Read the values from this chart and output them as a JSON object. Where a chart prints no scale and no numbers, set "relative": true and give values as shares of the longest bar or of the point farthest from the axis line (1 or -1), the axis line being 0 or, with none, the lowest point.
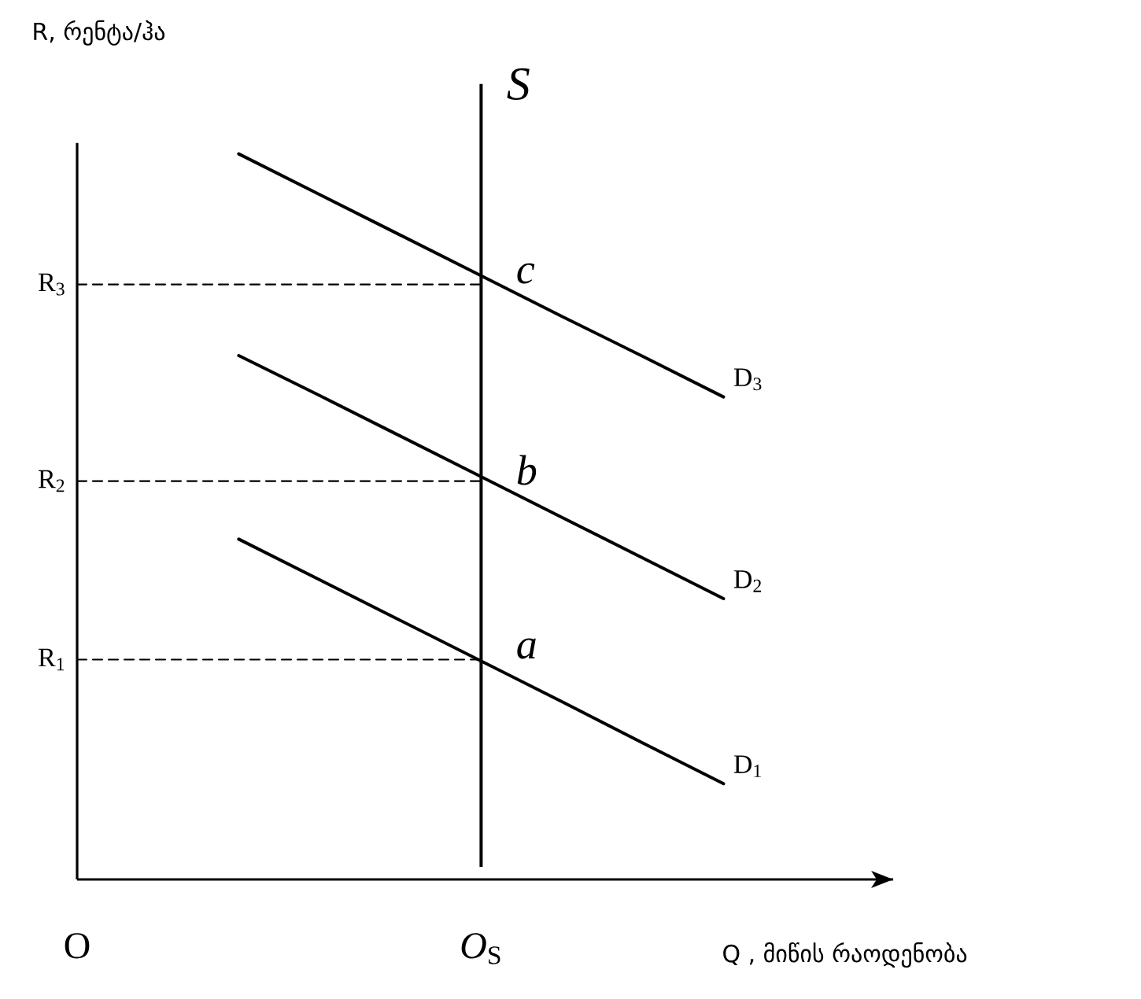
{
  "chart_data": {
    "type": "line",
    "relative": true,
    "marker": "none",
    "line_style": "solid",
    "xlabel": "Q , მიწის რაოდენობა",
    "ylabel": "R, რენტა/ჰა",
    "categories": [
      "O",
      null,
      null,
      null,
      null,
      "*O*$_{S}$",
      null,
      null,
      null,
      null,
      null
    ],
    "series": [
      {
        "name": "D$_{1}$",
        "color": "#000000",
        "values": [
          null,
          null,
          0.469,
          0.413,
          0.357,
          0.301,
          0.245,
          0.188,
          0.132,
          null,
          null
        ]
      },
      {
        "name": "D$_{2}$",
        "color": "#000000",
        "values": [
          null,
          null,
          0.722,
          0.667,
          0.611,
          0.555,
          0.499,
          0.443,
          0.387,
          null,
          null
        ]
      },
      {
        "name": "D$_{3}$",
        "color": "#000000",
        "values": [
          null,
          null,
          1.0,
          0.944,
          0.888,
          0.832,
          0.776,
          0.721,
          0.665,
          null,
          null
        ]
      },
      {
        "name": "R$_{1}$",
        "color": "#000000",
        "line_style": "dashed",
        "values": [
          0.303,
          0.303,
          0.303,
          0.303,
          0.303,
          0.303,
          null,
          null,
          null,
          null,
          null
        ]
      },
      {
        "name": "R$_{2}$",
        "color": "#000000",
        "line_style": "dashed",
        "values": [
          0.549,
          0.549,
          0.549,
          0.549,
          0.549,
          0.549,
          null,
          null,
          null,
          null,
          null
        ]
      },
      {
        "name": "R$_{3}$",
        "color": "#000000",
        "line_style": "dashed",
        "values": [
          0.82,
          0.82,
          0.82,
          0.82,
          0.82,
          0.82,
          null,
          null,
          null,
          null,
          null
        ]
      }
    ],
    "ref_lines": [
      {
        "axis": "x",
        "value": "*O*$_{S}$",
        "label": "S"
      }
    ],
    "annotations": [
      {
        "text": "a",
        "x": "*O*$_{S}$",
        "y": 0.303
      },
      {
        "text": "b",
        "x": "*O*$_{S}$",
        "y": 0.549
      },
      {
        "text": "c",
        "x": "*O*$_{S}$",
        "y": 0.82
      }
    ]
  }
}
